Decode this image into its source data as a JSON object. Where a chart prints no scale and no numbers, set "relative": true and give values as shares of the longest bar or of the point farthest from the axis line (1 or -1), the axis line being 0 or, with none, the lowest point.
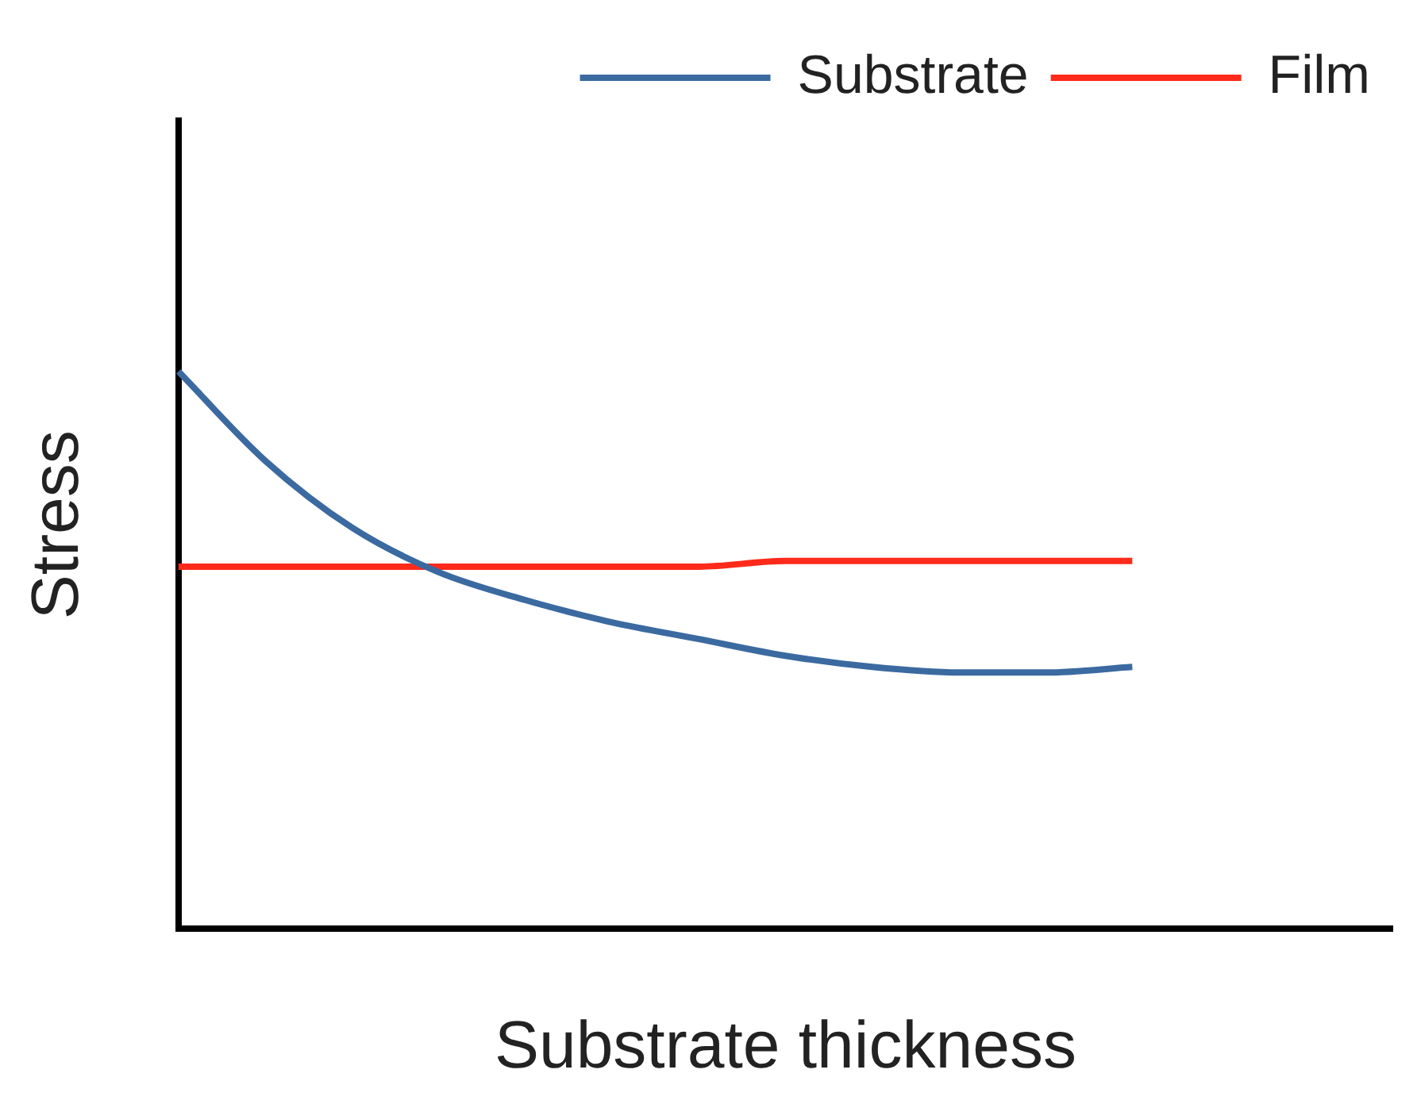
{
  "chart_data": {
    "type": "line",
    "relative": true,
    "xlabel": "Substrate thickness",
    "ylabel": "Stress",
    "legend": "top right",
    "grid": false,
    "marker": "none",
    "line_style": "solid",
    "categories": [
      null,
      null,
      null,
      null,
      null,
      null,
      null,
      null,
      null,
      null,
      null,
      null,
      null,
      null,
      null
    ],
    "series": [
      {
        "name": "Substrate",
        "color": "#3b6aa0",
        "values": [
          1,
          0.84,
          0.72,
          0.64,
          0.59,
          0.55,
          0.52,
          0.49,
          0.47,
          0.46,
          0.46,
          0.47,
          null,
          null,
          null
        ]
      },
      {
        "name": "Film",
        "color": "#ff2a1a",
        "values": [
          0.65,
          0.65,
          0.65,
          0.65,
          0.65,
          0.65,
          0.65,
          0.66,
          0.66,
          0.66,
          0.66,
          0.66,
          null,
          null,
          null
        ]
      }
    ]
  }
}
